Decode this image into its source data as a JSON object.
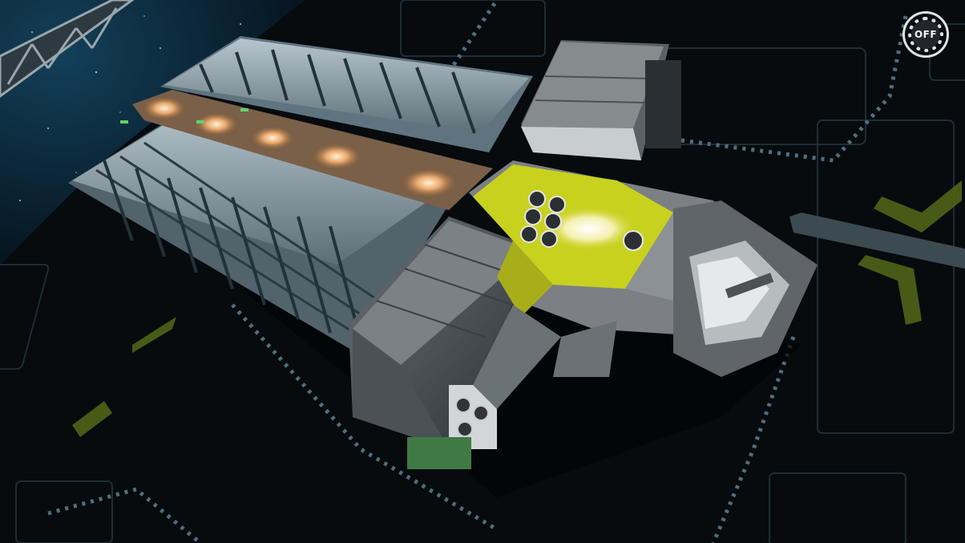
{
  "hud": {
    "toggle_label": "OFF"
  },
  "colors": {
    "space": "#0b2a3d",
    "grid_floor": "#070b0e",
    "hull_light": "#8fa3ad",
    "hull_dark": "#3c4348",
    "accent_yellow": "#c8d11e",
    "glow_warm": "#f0b37a",
    "grid_dots": "#4f6f80"
  },
  "icons": {
    "toggle": "off-toggle-icon"
  }
}
